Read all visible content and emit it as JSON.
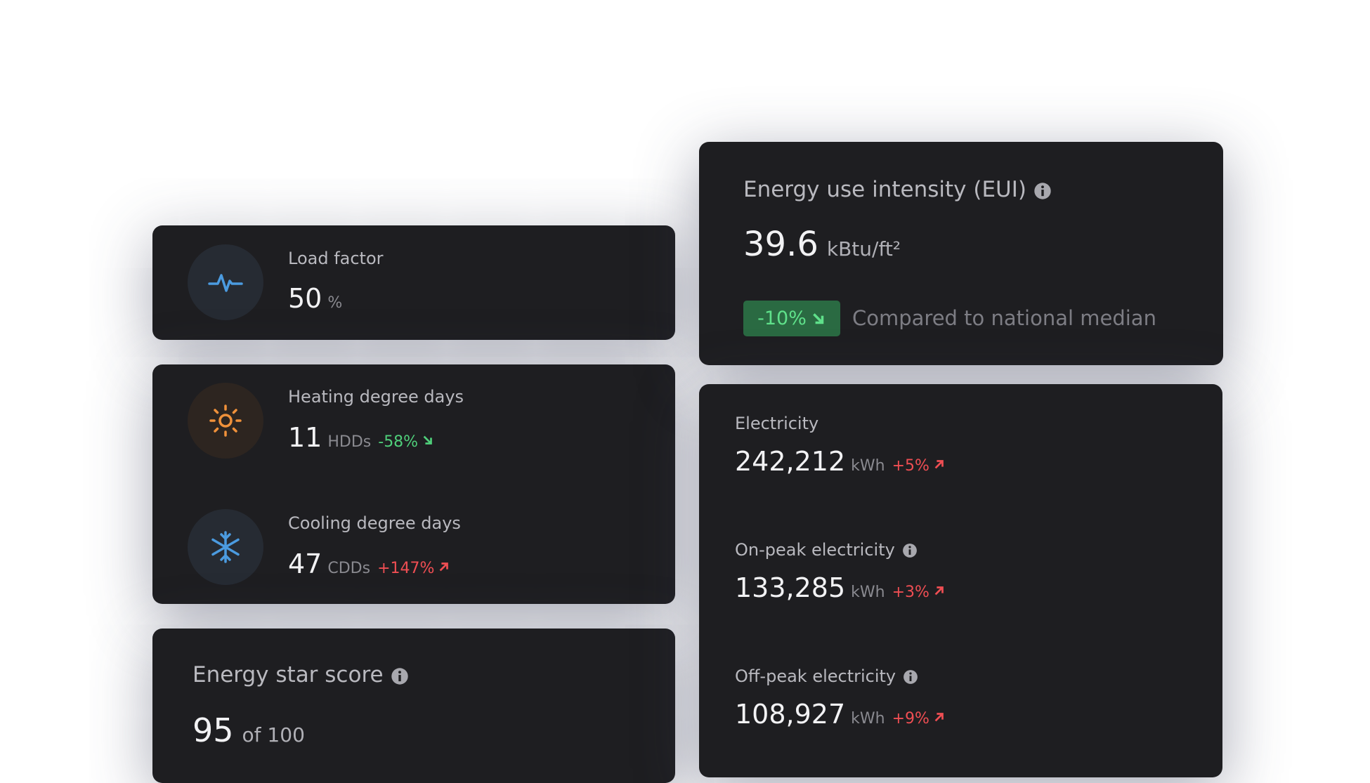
{
  "load_factor": {
    "label": "Load factor",
    "value": "50",
    "unit": "%"
  },
  "heating": {
    "label": "Heating degree days",
    "value": "11",
    "unit": "HDDs",
    "change": "-58%"
  },
  "cooling": {
    "label": "Cooling degree days",
    "value": "47",
    "unit": "CDDs",
    "change": "+147%"
  },
  "energy_star": {
    "label": "Energy star score",
    "value": "95",
    "suffix": "of 100"
  },
  "eui": {
    "label": "Energy use intensity (EUI)",
    "value": "39.6",
    "unit": "kBtu/ft²",
    "change": "-10%",
    "comparison": "Compared to national median"
  },
  "electricity": [
    {
      "label": "Electricity",
      "value": "242,212",
      "unit": "kWh",
      "change": "+5%"
    },
    {
      "label": "On-peak electricity",
      "value": "133,285",
      "unit": "kWh",
      "change": "+3%"
    },
    {
      "label": "Off-peak electricity",
      "value": "108,927",
      "unit": "kWh",
      "change": "+9%"
    }
  ]
}
